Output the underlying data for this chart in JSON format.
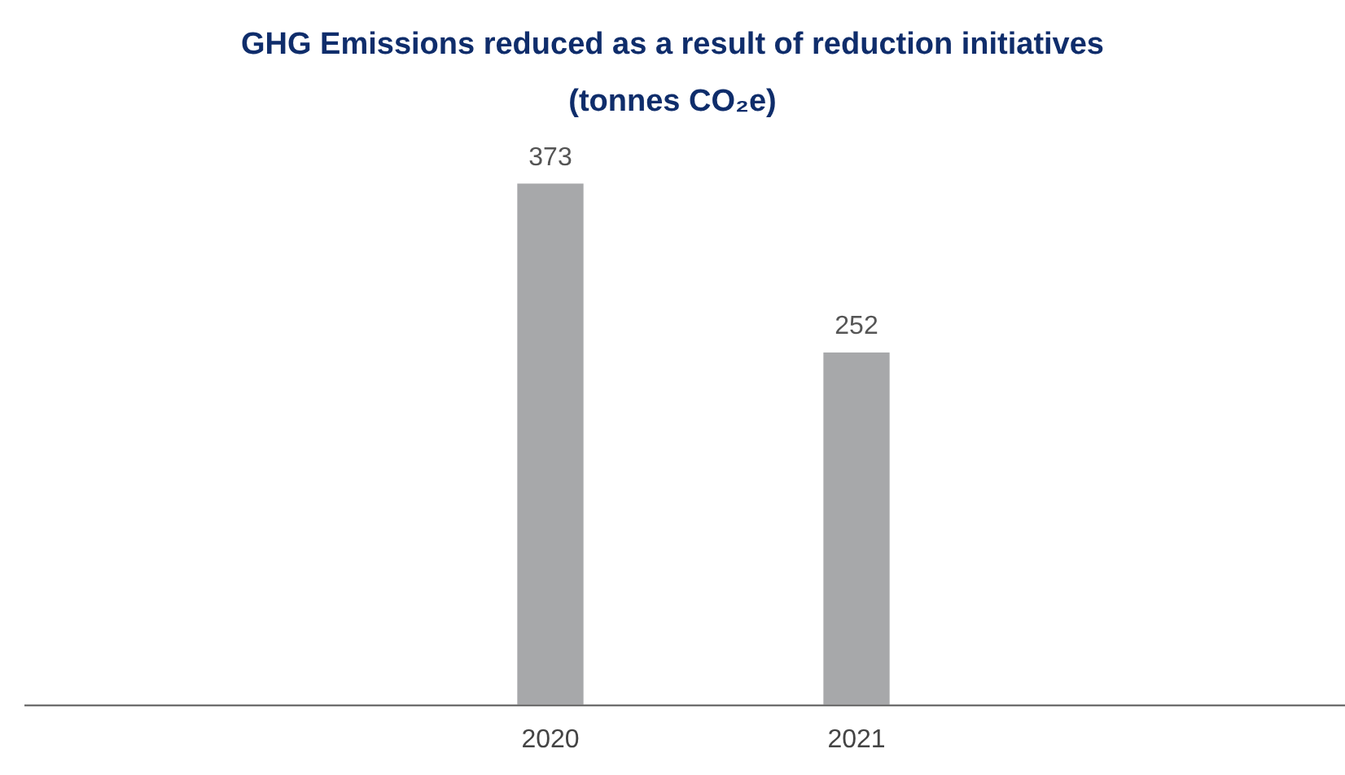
{
  "chart_data": {
    "type": "bar",
    "title": "GHG Emissions reduced as a result of reduction initiatives (tonnes CO₂e)",
    "categories": [
      "2020",
      "2021"
    ],
    "values": [
      373,
      252
    ],
    "color": "#a7a8aa",
    "relative": false,
    "data_labels": true,
    "grid": false,
    "legend": false
  }
}
